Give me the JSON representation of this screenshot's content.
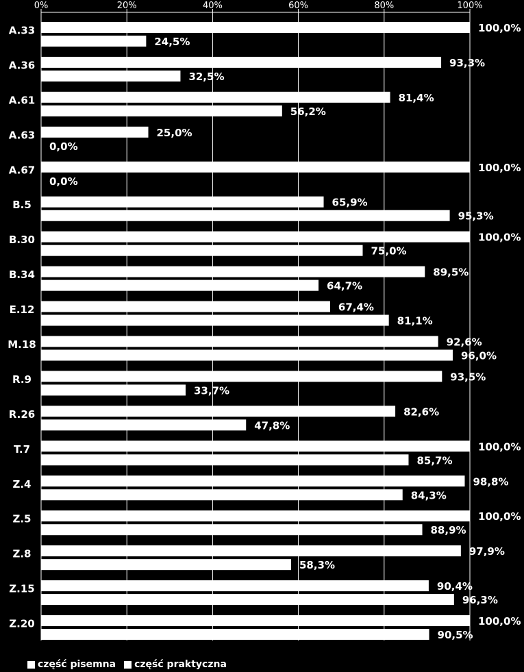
{
  "chart_data": {
    "type": "bar",
    "orientation": "horizontal",
    "categories": [
      "A.33",
      "A.36",
      "A.61",
      "A.63",
      "A.67",
      "B.5",
      "B.30",
      "B.34",
      "E.12",
      "M.18",
      "R.9",
      "R.26",
      "T.7",
      "Z.4",
      "Z.5",
      "Z.8",
      "Z.15",
      "Z.20"
    ],
    "series": [
      {
        "name": "część pisemna",
        "values": [
          100.0,
          93.3,
          81.4,
          25.0,
          100.0,
          65.9,
          100.0,
          89.5,
          67.4,
          92.6,
          93.5,
          82.6,
          100.0,
          98.8,
          100.0,
          97.9,
          90.4,
          100.0
        ],
        "labels": [
          "100,0%",
          "93,3%",
          "81,4%",
          "25,0%",
          "100,0%",
          "65,9%",
          "100,0%",
          "89,5%",
          "67,4%",
          "92,6%",
          "93,5%",
          "82,6%",
          "100,0%",
          "98,8%",
          "100,0%",
          "97,9%",
          "90,4%",
          "100,0%"
        ]
      },
      {
        "name": "część praktyczna",
        "values": [
          24.5,
          32.5,
          56.2,
          0.0,
          0.0,
          95.3,
          75.0,
          64.7,
          81.1,
          96.0,
          33.7,
          47.8,
          85.7,
          84.3,
          88.9,
          58.3,
          96.3,
          90.5
        ],
        "labels": [
          "24,5%",
          "32,5%",
          "56,2%",
          "0,0%",
          "0,0%",
          "95,3%",
          "75,0%",
          "64,7%",
          "81,1%",
          "96,0%",
          "33,7%",
          "47,8%",
          "85,7%",
          "84,3%",
          "88,9%",
          "58,3%",
          "96,3%",
          "90,5%"
        ]
      }
    ],
    "x_ticks": [
      "0%",
      "20%",
      "40%",
      "60%",
      "80%",
      "100%"
    ],
    "xlim": [
      0,
      100
    ],
    "axis_position": "top",
    "grid": true,
    "legend_position": "bottom-left",
    "colors": {
      "background": "#000000",
      "bars": "#ffffff",
      "grid": "#ffffff",
      "text": "#ffffff"
    }
  }
}
